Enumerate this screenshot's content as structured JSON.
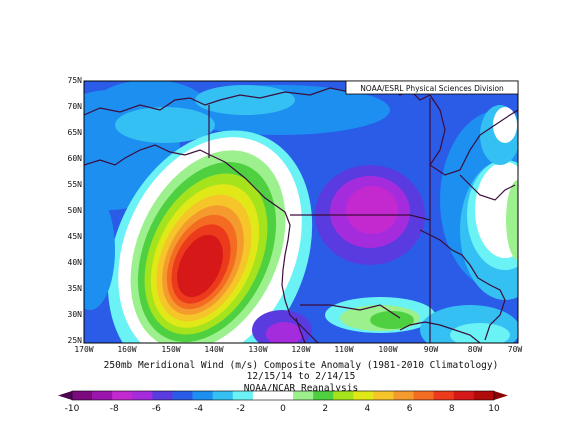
{
  "credit": "NOAA/ESRL Physical Sciences Division",
  "caption": {
    "line1": "250mb Meridional Wind (m/s) Composite Anomaly (1981-2010 Climatology)",
    "line2": "12/15/14  to 2/14/15",
    "line3": "NOAA/NCAR Reanalysis"
  },
  "lat_labels": [
    "75N",
    "70N",
    "65N",
    "60N",
    "55N",
    "50N",
    "45N",
    "40N",
    "35N",
    "30N",
    "25N"
  ],
  "lon_labels": [
    "170W",
    "160W",
    "150W",
    "140W",
    "130W",
    "120W",
    "110W",
    "100W",
    "90W",
    "80W",
    "70W"
  ],
  "colorbar": {
    "labels": [
      "-10",
      "-8",
      "-6",
      "-4",
      "-2",
      "0",
      "2",
      "4",
      "6",
      "8",
      "10"
    ],
    "colors": [
      "#7a0a7e",
      "#9a14ad",
      "#c329cf",
      "#a52cdd",
      "#5a3be0",
      "#2a5ce8",
      "#1d8ff0",
      "#35c0f3",
      "#6af2f5",
      "#ffffff",
      "#ffffff",
      "#9cf08e",
      "#4fd040",
      "#a5e41c",
      "#e0e818",
      "#f5c52a",
      "#f59a2c",
      "#f46c22",
      "#ec3a1c",
      "#d61818",
      "#b00a0a"
    ]
  },
  "colors": {
    "coast": "#3b0d3b",
    "background": "#ffffff"
  }
}
